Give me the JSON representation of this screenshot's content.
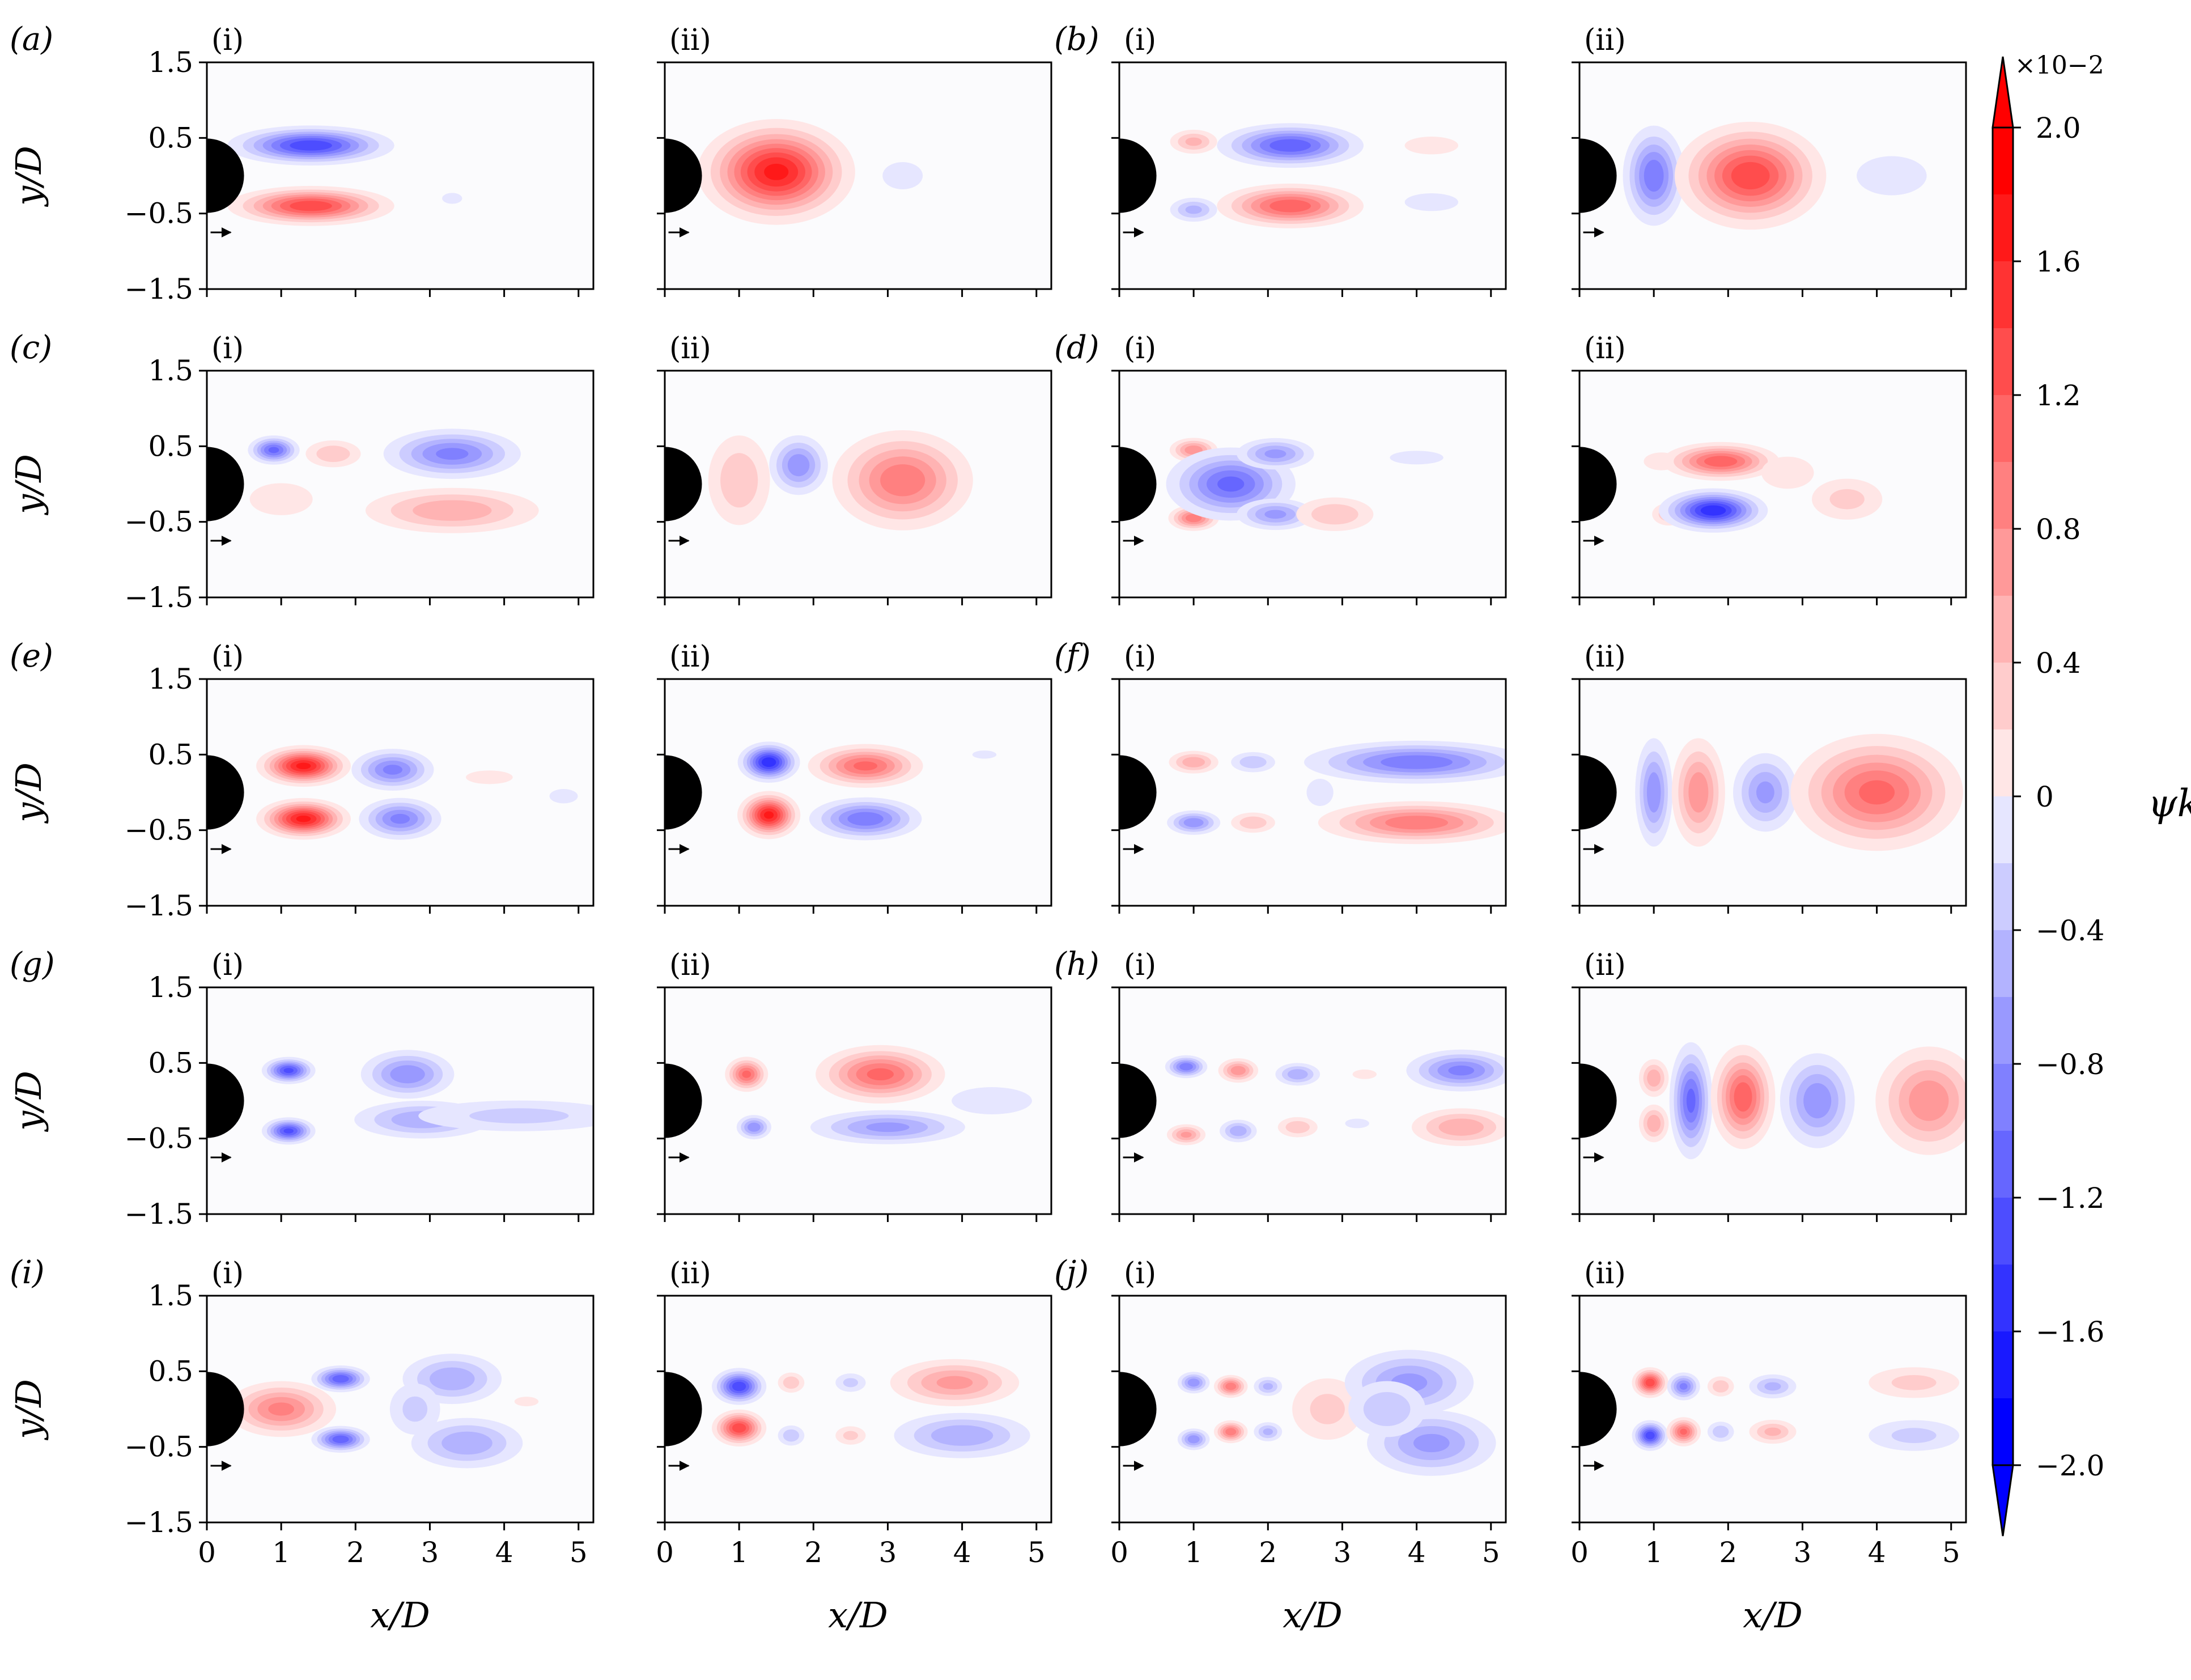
{
  "figure": {
    "row_labels": [
      "(a)",
      "(b)",
      "(c)",
      "(d)",
      "(e)",
      "(f)",
      "(g)",
      "(h)",
      "(i)",
      "(j)"
    ],
    "sub_labels": [
      "(i)",
      "(ii)"
    ]
  },
  "colorbar": {
    "label": "ψk",
    "exponent_label": "×10−2",
    "ticks": [
      "2.0",
      "1.6",
      "1.2",
      "0.8",
      "0.4",
      "0",
      "−0.4",
      "−0.8",
      "−1.2",
      "−1.6",
      "−2.0"
    ],
    "colors": {
      "positive": "#ff0000",
      "negative": "#0000ff",
      "zero": "#ffffff"
    }
  },
  "chart_data": {
    "type": "heatmap",
    "xlabel": "x/D",
    "ylabel": "y/D",
    "xlim": [
      0,
      5.2
    ],
    "ylim": [
      -1.5,
      1.5
    ],
    "xticks": [
      "0",
      "1",
      "2",
      "3",
      "4",
      "5"
    ],
    "yticks": [
      "1.5",
      "0.5",
      "−0.5",
      "−1.5"
    ],
    "clim": [
      -2.0,
      2.0
    ],
    "units_scale": "×10−2",
    "cylinder": {
      "center_x": 0,
      "center_y": 0,
      "diameter": 1
    },
    "modes": [
      {
        "label": "(a)",
        "sub": "(i)",
        "blobs": [
          {
            "x": 1.4,
            "y": 0.4,
            "sx": 0.55,
            "sy": 0.13,
            "v": -1.6
          },
          {
            "x": 1.4,
            "y": -0.4,
            "sx": 0.55,
            "sy": 0.13,
            "v": 1.6
          },
          {
            "x": 3.3,
            "y": -0.3,
            "sx": 0.15,
            "sy": 0.08,
            "v": -0.2
          }
        ]
      },
      {
        "label": "(a)",
        "sub": "(ii)",
        "blobs": [
          {
            "x": 1.5,
            "y": 0.05,
            "sx": 0.5,
            "sy": 0.33,
            "v": 1.9
          },
          {
            "x": 3.2,
            "y": 0.0,
            "sx": 0.3,
            "sy": 0.2,
            "v": -0.3
          }
        ]
      },
      {
        "label": "(b)",
        "sub": "(i)",
        "blobs": [
          {
            "x": 1.0,
            "y": 0.45,
            "sx": 0.2,
            "sy": 0.1,
            "v": 0.7
          },
          {
            "x": 1.0,
            "y": -0.45,
            "sx": 0.2,
            "sy": 0.1,
            "v": -0.7
          },
          {
            "x": 2.3,
            "y": 0.4,
            "sx": 0.5,
            "sy": 0.15,
            "v": -1.4
          },
          {
            "x": 2.3,
            "y": -0.4,
            "sx": 0.5,
            "sy": 0.15,
            "v": 1.4
          },
          {
            "x": 4.2,
            "y": 0.4,
            "sx": 0.4,
            "sy": 0.13,
            "v": 0.3
          },
          {
            "x": 4.2,
            "y": -0.35,
            "sx": 0.4,
            "sy": 0.13,
            "v": -0.3
          }
        ]
      },
      {
        "label": "(b)",
        "sub": "(ii)",
        "blobs": [
          {
            "x": 1.0,
            "y": 0.0,
            "sx": 0.22,
            "sy": 0.35,
            "v": -1.2
          },
          {
            "x": 2.3,
            "y": 0.0,
            "sx": 0.5,
            "sy": 0.35,
            "v": 1.6
          },
          {
            "x": 4.2,
            "y": 0.0,
            "sx": 0.4,
            "sy": 0.22,
            "v": -0.4
          }
        ]
      },
      {
        "label": "(c)",
        "sub": "(i)",
        "blobs": [
          {
            "x": 0.9,
            "y": 0.45,
            "sx": 0.18,
            "sy": 0.1,
            "v": -1.3
          },
          {
            "x": 1.7,
            "y": 0.4,
            "sx": 0.25,
            "sy": 0.12,
            "v": 0.6
          },
          {
            "x": 1.0,
            "y": -0.2,
            "sx": 0.4,
            "sy": 0.2,
            "v": 0.35
          },
          {
            "x": 3.3,
            "y": 0.4,
            "sx": 0.5,
            "sy": 0.18,
            "v": -1.1
          },
          {
            "x": 3.3,
            "y": -0.35,
            "sx": 0.7,
            "sy": 0.18,
            "v": 0.8
          }
        ]
      },
      {
        "label": "(c)",
        "sub": "(ii)",
        "blobs": [
          {
            "x": 1.0,
            "y": 0.05,
            "sx": 0.28,
            "sy": 0.4,
            "v": 0.6
          },
          {
            "x": 1.8,
            "y": 0.25,
            "sx": 0.22,
            "sy": 0.22,
            "v": -1.0
          },
          {
            "x": 3.2,
            "y": 0.05,
            "sx": 0.5,
            "sy": 0.35,
            "v": 1.2
          }
        ]
      },
      {
        "label": "(d)",
        "sub": "(i)",
        "blobs": [
          {
            "x": 1.0,
            "y": 0.45,
            "sx": 0.18,
            "sy": 0.09,
            "v": 1.0
          },
          {
            "x": 1.0,
            "y": -0.45,
            "sx": 0.18,
            "sy": 0.09,
            "v": 1.2
          },
          {
            "x": 1.5,
            "y": 0.0,
            "sx": 0.45,
            "sy": 0.25,
            "v": -1.3
          },
          {
            "x": 2.1,
            "y": 0.4,
            "sx": 0.3,
            "sy": 0.12,
            "v": -0.9
          },
          {
            "x": 2.1,
            "y": -0.4,
            "sx": 0.3,
            "sy": 0.12,
            "v": -0.9
          },
          {
            "x": 2.9,
            "y": -0.4,
            "sx": 0.35,
            "sy": 0.15,
            "v": 0.6
          },
          {
            "x": 4.0,
            "y": 0.35,
            "sx": 0.4,
            "sy": 0.1,
            "v": -0.25
          }
        ]
      },
      {
        "label": "(d)",
        "sub": "(ii)",
        "blobs": [
          {
            "x": 1.1,
            "y": 0.3,
            "sx": 0.2,
            "sy": 0.1,
            "v": 0.4
          },
          {
            "x": 1.2,
            "y": -0.4,
            "sx": 0.15,
            "sy": 0.1,
            "v": 0.6
          },
          {
            "x": 1.9,
            "y": 0.3,
            "sx": 0.4,
            "sy": 0.13,
            "v": 1.4
          },
          {
            "x": 1.8,
            "y": -0.35,
            "sx": 0.35,
            "sy": 0.14,
            "v": -1.8
          },
          {
            "x": 2.8,
            "y": 0.15,
            "sx": 0.3,
            "sy": 0.18,
            "v": 0.4
          },
          {
            "x": 3.6,
            "y": -0.2,
            "sx": 0.35,
            "sy": 0.2,
            "v": 0.5
          }
        ]
      },
      {
        "label": "(e)",
        "sub": "(i)",
        "blobs": [
          {
            "x": 1.3,
            "y": 0.35,
            "sx": 0.3,
            "sy": 0.13,
            "v": 1.9
          },
          {
            "x": 1.3,
            "y": -0.35,
            "sx": 0.3,
            "sy": 0.13,
            "v": 1.9
          },
          {
            "x": 2.5,
            "y": 0.3,
            "sx": 0.3,
            "sy": 0.15,
            "v": -1.1
          },
          {
            "x": 2.6,
            "y": -0.35,
            "sx": 0.3,
            "sy": 0.15,
            "v": -1.1
          },
          {
            "x": 3.8,
            "y": 0.2,
            "sx": 0.35,
            "sy": 0.1,
            "v": 0.3
          },
          {
            "x": 4.8,
            "y": -0.05,
            "sx": 0.18,
            "sy": 0.09,
            "v": -0.35
          }
        ]
      },
      {
        "label": "(e)",
        "sub": "(ii)",
        "blobs": [
          {
            "x": 1.4,
            "y": 0.4,
            "sx": 0.2,
            "sy": 0.13,
            "v": -1.8
          },
          {
            "x": 1.4,
            "y": -0.3,
            "sx": 0.2,
            "sy": 0.15,
            "v": 1.9
          },
          {
            "x": 2.7,
            "y": 0.35,
            "sx": 0.4,
            "sy": 0.15,
            "v": 1.3
          },
          {
            "x": 2.7,
            "y": -0.35,
            "sx": 0.4,
            "sy": 0.15,
            "v": -1.2
          },
          {
            "x": 4.3,
            "y": 0.5,
            "sx": 0.18,
            "sy": 0.06,
            "v": -0.3
          }
        ]
      },
      {
        "label": "(f)",
        "sub": "(i)",
        "blobs": [
          {
            "x": 1.0,
            "y": 0.4,
            "sx": 0.2,
            "sy": 0.09,
            "v": 0.8
          },
          {
            "x": 1.0,
            "y": -0.4,
            "sx": 0.2,
            "sy": 0.09,
            "v": -1.0
          },
          {
            "x": 1.8,
            "y": 0.4,
            "sx": 0.2,
            "sy": 0.09,
            "v": -0.6
          },
          {
            "x": 1.8,
            "y": -0.4,
            "sx": 0.2,
            "sy": 0.09,
            "v": 0.6
          },
          {
            "x": 2.7,
            "y": 0.0,
            "sx": 0.2,
            "sy": 0.2,
            "v": -0.3
          },
          {
            "x": 4.0,
            "y": 0.4,
            "sx": 0.8,
            "sy": 0.15,
            "v": -1.2
          },
          {
            "x": 4.0,
            "y": -0.4,
            "sx": 0.7,
            "sy": 0.15,
            "v": 1.2
          }
        ]
      },
      {
        "label": "(f)",
        "sub": "(ii)",
        "blobs": [
          {
            "x": 1.0,
            "y": 0.0,
            "sx": 0.14,
            "sy": 0.4,
            "v": -1.0
          },
          {
            "x": 1.6,
            "y": 0.0,
            "sx": 0.2,
            "sy": 0.4,
            "v": 1.0
          },
          {
            "x": 2.5,
            "y": 0.0,
            "sx": 0.25,
            "sy": 0.3,
            "v": -0.9
          },
          {
            "x": 4.0,
            "y": 0.0,
            "sx": 0.6,
            "sy": 0.4,
            "v": 1.3
          }
        ]
      },
      {
        "label": "(g)",
        "sub": "(i)",
        "blobs": [
          {
            "x": 1.1,
            "y": 0.4,
            "sx": 0.18,
            "sy": 0.09,
            "v": -1.5
          },
          {
            "x": 1.1,
            "y": -0.4,
            "sx": 0.18,
            "sy": 0.09,
            "v": -1.5
          },
          {
            "x": 2.7,
            "y": 0.35,
            "sx": 0.35,
            "sy": 0.18,
            "v": -1.0
          },
          {
            "x": 2.9,
            "y": -0.25,
            "sx": 0.55,
            "sy": 0.15,
            "v": -0.8
          },
          {
            "x": 4.2,
            "y": -0.2,
            "sx": 1.0,
            "sy": 0.15,
            "v": -0.5
          }
        ]
      },
      {
        "label": "(g)",
        "sub": "(ii)",
        "blobs": [
          {
            "x": 1.1,
            "y": 0.35,
            "sx": 0.15,
            "sy": 0.12,
            "v": 1.3
          },
          {
            "x": 1.2,
            "y": -0.35,
            "sx": 0.13,
            "sy": 0.09,
            "v": -1.0
          },
          {
            "x": 2.9,
            "y": 0.35,
            "sx": 0.45,
            "sy": 0.2,
            "v": 1.3
          },
          {
            "x": 3.0,
            "y": -0.35,
            "sx": 0.6,
            "sy": 0.13,
            "v": -0.9
          },
          {
            "x": 4.4,
            "y": 0.0,
            "sx": 0.6,
            "sy": 0.2,
            "v": -0.3
          }
        ]
      },
      {
        "label": "(h)",
        "sub": "(i)",
        "blobs": [
          {
            "x": 0.9,
            "y": 0.45,
            "sx": 0.15,
            "sy": 0.08,
            "v": -1.2
          },
          {
            "x": 0.9,
            "y": -0.45,
            "sx": 0.15,
            "sy": 0.08,
            "v": 0.9
          },
          {
            "x": 1.6,
            "y": 0.4,
            "sx": 0.15,
            "sy": 0.09,
            "v": 1.0
          },
          {
            "x": 1.6,
            "y": -0.4,
            "sx": 0.15,
            "sy": 0.09,
            "v": -0.8
          },
          {
            "x": 2.4,
            "y": 0.35,
            "sx": 0.18,
            "sy": 0.09,
            "v": -0.8
          },
          {
            "x": 2.4,
            "y": -0.35,
            "sx": 0.18,
            "sy": 0.09,
            "v": 0.6
          },
          {
            "x": 3.3,
            "y": 0.35,
            "sx": 0.18,
            "sy": 0.07,
            "v": 0.3
          },
          {
            "x": 3.2,
            "y": -0.3,
            "sx": 0.18,
            "sy": 0.07,
            "v": -0.3
          },
          {
            "x": 4.6,
            "y": 0.4,
            "sx": 0.4,
            "sy": 0.15,
            "v": -1.1
          },
          {
            "x": 4.6,
            "y": -0.35,
            "sx": 0.4,
            "sy": 0.15,
            "v": 0.8
          }
        ]
      },
      {
        "label": "(h)",
        "sub": "(ii)",
        "blobs": [
          {
            "x": 1.0,
            "y": 0.3,
            "sx": 0.12,
            "sy": 0.15,
            "v": 0.8
          },
          {
            "x": 1.0,
            "y": -0.3,
            "sx": 0.12,
            "sy": 0.15,
            "v": 0.8
          },
          {
            "x": 1.5,
            "y": 0.0,
            "sx": 0.15,
            "sy": 0.4,
            "v": -1.3
          },
          {
            "x": 2.2,
            "y": 0.05,
            "sx": 0.22,
            "sy": 0.35,
            "v": 1.4
          },
          {
            "x": 3.2,
            "y": 0.0,
            "sx": 0.28,
            "sy": 0.35,
            "v": -1.0
          },
          {
            "x": 4.7,
            "y": 0.0,
            "sx": 0.4,
            "sy": 0.4,
            "v": 1.0
          }
        ]
      },
      {
        "label": "(i)",
        "sub": "(i)",
        "blobs": [
          {
            "x": 1.0,
            "y": 0.0,
            "sx": 0.4,
            "sy": 0.2,
            "v": 1.1
          },
          {
            "x": 1.8,
            "y": 0.4,
            "sx": 0.2,
            "sy": 0.09,
            "v": -1.4
          },
          {
            "x": 1.8,
            "y": -0.4,
            "sx": 0.2,
            "sy": 0.09,
            "v": -1.4
          },
          {
            "x": 3.3,
            "y": 0.4,
            "sx": 0.4,
            "sy": 0.2,
            "v": -0.8
          },
          {
            "x": 3.5,
            "y": -0.45,
            "sx": 0.45,
            "sy": 0.2,
            "v": -0.8
          },
          {
            "x": 2.8,
            "y": 0.0,
            "sx": 0.25,
            "sy": 0.25,
            "v": -0.5
          },
          {
            "x": 4.3,
            "y": 0.1,
            "sx": 0.18,
            "sy": 0.07,
            "v": 0.25
          }
        ]
      },
      {
        "label": "(i)",
        "sub": "(ii)",
        "blobs": [
          {
            "x": 1.0,
            "y": 0.3,
            "sx": 0.18,
            "sy": 0.12,
            "v": -1.6
          },
          {
            "x": 1.0,
            "y": -0.25,
            "sx": 0.18,
            "sy": 0.12,
            "v": 1.6
          },
          {
            "x": 1.7,
            "y": 0.35,
            "sx": 0.12,
            "sy": 0.09,
            "v": 0.6
          },
          {
            "x": 1.7,
            "y": -0.35,
            "sx": 0.12,
            "sy": 0.09,
            "v": -0.6
          },
          {
            "x": 2.5,
            "y": 0.35,
            "sx": 0.15,
            "sy": 0.09,
            "v": -0.5
          },
          {
            "x": 2.5,
            "y": -0.35,
            "sx": 0.15,
            "sy": 0.09,
            "v": 0.5
          },
          {
            "x": 3.9,
            "y": 0.35,
            "sx": 0.5,
            "sy": 0.18,
            "v": 0.9
          },
          {
            "x": 4.0,
            "y": -0.35,
            "sx": 0.55,
            "sy": 0.18,
            "v": -0.8
          }
        ]
      },
      {
        "label": "(j)",
        "sub": "(i)",
        "blobs": [
          {
            "x": 1.0,
            "y": 0.35,
            "sx": 0.12,
            "sy": 0.08,
            "v": -1.0
          },
          {
            "x": 1.0,
            "y": -0.4,
            "sx": 0.12,
            "sy": 0.08,
            "v": -1.0
          },
          {
            "x": 1.5,
            "y": 0.3,
            "sx": 0.12,
            "sy": 0.08,
            "v": 1.2
          },
          {
            "x": 1.5,
            "y": -0.3,
            "sx": 0.12,
            "sy": 0.08,
            "v": 1.2
          },
          {
            "x": 2.0,
            "y": 0.3,
            "sx": 0.12,
            "sy": 0.08,
            "v": -0.7
          },
          {
            "x": 2.0,
            "y": -0.3,
            "sx": 0.12,
            "sy": 0.08,
            "v": -0.7
          },
          {
            "x": 2.8,
            "y": 0.0,
            "sx": 0.35,
            "sy": 0.3,
            "v": 0.5
          },
          {
            "x": 3.9,
            "y": 0.35,
            "sx": 0.5,
            "sy": 0.25,
            "v": -0.9
          },
          {
            "x": 4.2,
            "y": -0.45,
            "sx": 0.5,
            "sy": 0.25,
            "v": -0.9
          },
          {
            "x": 3.6,
            "y": 0.0,
            "sx": 0.35,
            "sy": 0.25,
            "v": -0.6
          }
        ]
      },
      {
        "label": "(j)",
        "sub": "(ii)",
        "blobs": [
          {
            "x": 0.95,
            "y": 0.35,
            "sx": 0.12,
            "sy": 0.1,
            "v": 1.6
          },
          {
            "x": 0.95,
            "y": -0.35,
            "sx": 0.12,
            "sy": 0.1,
            "v": -1.6
          },
          {
            "x": 1.4,
            "y": 0.3,
            "sx": 0.12,
            "sy": 0.1,
            "v": -1.1
          },
          {
            "x": 1.4,
            "y": -0.3,
            "sx": 0.12,
            "sy": 0.1,
            "v": 1.3
          },
          {
            "x": 1.9,
            "y": 0.3,
            "sx": 0.12,
            "sy": 0.09,
            "v": 0.6
          },
          {
            "x": 1.9,
            "y": -0.3,
            "sx": 0.12,
            "sy": 0.09,
            "v": -0.6
          },
          {
            "x": 2.6,
            "y": 0.3,
            "sx": 0.2,
            "sy": 0.1,
            "v": -0.7
          },
          {
            "x": 2.6,
            "y": -0.3,
            "sx": 0.2,
            "sy": 0.1,
            "v": 0.7
          },
          {
            "x": 4.5,
            "y": 0.35,
            "sx": 0.45,
            "sy": 0.15,
            "v": 0.5
          },
          {
            "x": 4.5,
            "y": -0.35,
            "sx": 0.45,
            "sy": 0.15,
            "v": -0.5
          }
        ]
      }
    ]
  }
}
